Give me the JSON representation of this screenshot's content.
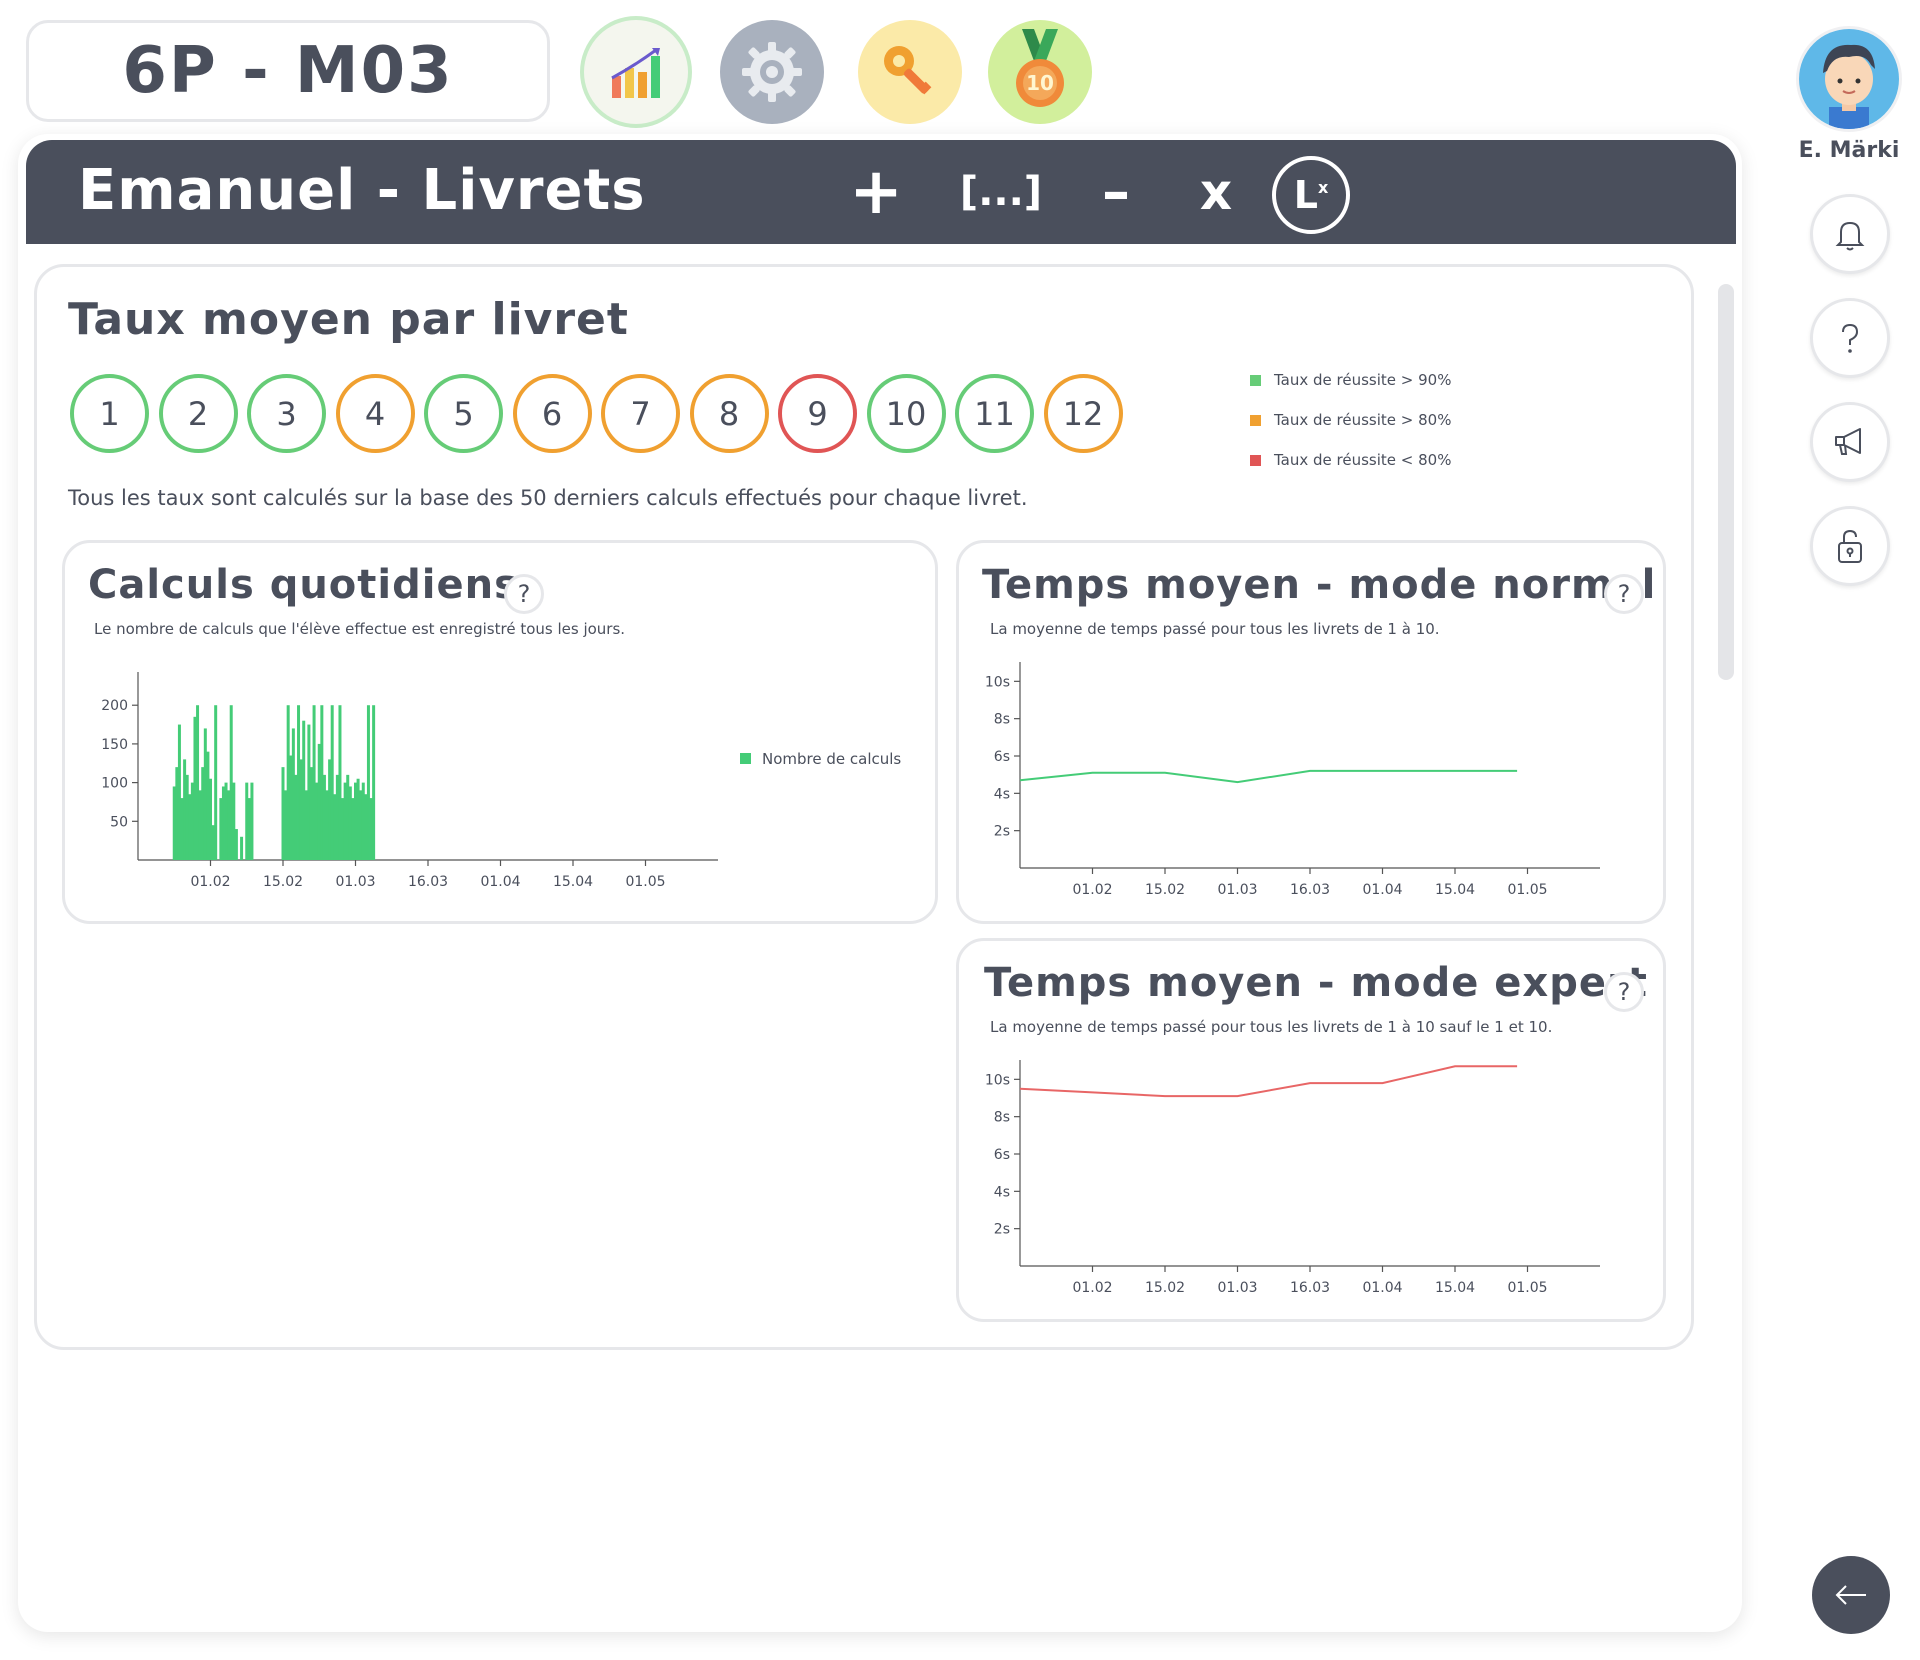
{
  "header": {
    "class_label": "6P - M03",
    "icons": [
      "stats-icon",
      "gear-icon",
      "key-icon",
      "medal-icon"
    ],
    "medal_number": "10"
  },
  "user": {
    "name": "E. Märki"
  },
  "sidebar": {
    "icons": [
      "bell-icon",
      "question-icon",
      "megaphone-icon",
      "lock-icon",
      "back-arrow-icon"
    ]
  },
  "window": {
    "title": "Emanuel - Livrets",
    "buttons": {
      "plus": "+",
      "ellipsis": "[...]",
      "minus": "–",
      "times": "x",
      "exponent_base": "L",
      "exponent_power": "x"
    }
  },
  "summary": {
    "title": "Taux moyen par livret",
    "booklets": [
      {
        "label": "1",
        "status": "green"
      },
      {
        "label": "2",
        "status": "green"
      },
      {
        "label": "3",
        "status": "green"
      },
      {
        "label": "4",
        "status": "orange"
      },
      {
        "label": "5",
        "status": "green"
      },
      {
        "label": "6",
        "status": "orange"
      },
      {
        "label": "7",
        "status": "orange"
      },
      {
        "label": "8",
        "status": "orange"
      },
      {
        "label": "9",
        "status": "red"
      },
      {
        "label": "10",
        "status": "green"
      },
      {
        "label": "11",
        "status": "green"
      },
      {
        "label": "12",
        "status": "orange"
      }
    ],
    "legend": [
      {
        "label": "Taux de réussite > 90%",
        "color": "#66cc77"
      },
      {
        "label": "Taux de réussite > 80%",
        "color": "#f0a030"
      },
      {
        "label": "Taux de réussite < 80%",
        "color": "#e05555"
      }
    ],
    "note": "Tous les taux sont calculés sur la base des 50 derniers calculs effectués pour chaque livret.",
    "colors": {
      "green": "#66cc77",
      "orange": "#f0a030",
      "red": "#e05555"
    }
  },
  "cards": {
    "daily": {
      "title": "Calculs quotidiens",
      "help": "?",
      "subtitle": "Le nombre de calculs que l'élève effectue est enregistré tous les jours."
    },
    "normal": {
      "title": "Temps moyen - mode normal",
      "help": "?",
      "subtitle": "La moyenne de temps passé pour tous les livrets de 1 à 10."
    },
    "expert": {
      "title": "Temps moyen - mode expert",
      "help": "?",
      "subtitle": "La moyenne de temps passé pour tous les livrets de 1 à 10 sauf le 1 et 10."
    }
  },
  "chart_data": [
    {
      "type": "bar",
      "title": "",
      "series_name": "Nombre de calculs",
      "color": "#44cc77",
      "x_ticks": [
        "01.02",
        "15.02",
        "01.03",
        "16.03",
        "01.04",
        "15.04",
        "01.05"
      ],
      "y_ticks": [
        50,
        100,
        150,
        200
      ],
      "ylim": [
        0,
        230
      ],
      "x_day_range": [
        0,
        112
      ],
      "x_tick_days": [
        14,
        28,
        42,
        56,
        70,
        84,
        98
      ],
      "bars": [
        {
          "day": 7,
          "value": 95
        },
        {
          "day": 7.5,
          "value": 120
        },
        {
          "day": 8,
          "value": 175
        },
        {
          "day": 8.5,
          "value": 80
        },
        {
          "day": 9,
          "value": 130
        },
        {
          "day": 9.5,
          "value": 110
        },
        {
          "day": 10,
          "value": 85
        },
        {
          "day": 10.5,
          "value": 100
        },
        {
          "day": 11,
          "value": 185
        },
        {
          "day": 11.5,
          "value": 200
        },
        {
          "day": 12,
          "value": 90
        },
        {
          "day": 12.5,
          "value": 120
        },
        {
          "day": 13,
          "value": 170
        },
        {
          "day": 13.5,
          "value": 140
        },
        {
          "day": 14,
          "value": 105
        },
        {
          "day": 14.5,
          "value": 45
        },
        {
          "day": 15,
          "value": 200
        },
        {
          "day": 16,
          "value": 80
        },
        {
          "day": 16.5,
          "value": 95
        },
        {
          "day": 17,
          "value": 100
        },
        {
          "day": 17.5,
          "value": 90
        },
        {
          "day": 18,
          "value": 200
        },
        {
          "day": 18.5,
          "value": 100
        },
        {
          "day": 19,
          "value": 40
        },
        {
          "day": 20,
          "value": 30
        },
        {
          "day": 21,
          "value": 100
        },
        {
          "day": 21.5,
          "value": 80
        },
        {
          "day": 22,
          "value": 100
        },
        {
          "day": 28,
          "value": 120
        },
        {
          "day": 28.5,
          "value": 90
        },
        {
          "day": 29,
          "value": 200
        },
        {
          "day": 29.5,
          "value": 135
        },
        {
          "day": 30,
          "value": 170
        },
        {
          "day": 30.5,
          "value": 110
        },
        {
          "day": 31,
          "value": 200
        },
        {
          "day": 31.5,
          "value": 130
        },
        {
          "day": 32,
          "value": 180
        },
        {
          "day": 32.5,
          "value": 90
        },
        {
          "day": 33,
          "value": 175
        },
        {
          "day": 33.5,
          "value": 120
        },
        {
          "day": 34,
          "value": 200
        },
        {
          "day": 34.5,
          "value": 100
        },
        {
          "day": 35,
          "value": 150
        },
        {
          "day": 35.5,
          "value": 200
        },
        {
          "day": 36,
          "value": 110
        },
        {
          "day": 36.5,
          "value": 90
        },
        {
          "day": 37,
          "value": 130
        },
        {
          "day": 37.5,
          "value": 200
        },
        {
          "day": 38,
          "value": 85
        },
        {
          "day": 38.5,
          "value": 110
        },
        {
          "day": 39,
          "value": 200
        },
        {
          "day": 39.5,
          "value": 80
        },
        {
          "day": 40,
          "value": 100
        },
        {
          "day": 40.5,
          "value": 110
        },
        {
          "day": 41,
          "value": 95
        },
        {
          "day": 41.5,
          "value": 80
        },
        {
          "day": 42,
          "value": 100
        },
        {
          "day": 42.5,
          "value": 105
        },
        {
          "day": 43,
          "value": 90
        },
        {
          "day": 43.5,
          "value": 100
        },
        {
          "day": 44,
          "value": 85
        },
        {
          "day": 44.5,
          "value": 200
        },
        {
          "day": 45,
          "value": 80
        },
        {
          "day": 45.5,
          "value": 200
        }
      ]
    },
    {
      "type": "line",
      "title": "",
      "color": "#44cc77",
      "x_ticks": [
        "01.02",
        "15.02",
        "01.03",
        "16.03",
        "01.04",
        "15.04",
        "01.05"
      ],
      "y_ticks": [
        "2s",
        "4s",
        "6s",
        "8s",
        "10s"
      ],
      "y_tick_values": [
        2,
        4,
        6,
        8,
        10
      ],
      "ylim": [
        0,
        10.5
      ],
      "x_day_range": [
        0,
        112
      ],
      "x_tick_days": [
        14,
        28,
        42,
        56,
        70,
        84,
        98
      ],
      "points": [
        {
          "day": 0,
          "value": 4.7
        },
        {
          "day": 14,
          "value": 5.1
        },
        {
          "day": 28,
          "value": 5.1
        },
        {
          "day": 42,
          "value": 4.6
        },
        {
          "day": 56,
          "value": 5.2
        },
        {
          "day": 70,
          "value": 5.2
        },
        {
          "day": 84,
          "value": 5.2
        },
        {
          "day": 96,
          "value": 5.2
        }
      ]
    },
    {
      "type": "line",
      "title": "",
      "color": "#e86666",
      "x_ticks": [
        "01.02",
        "15.02",
        "01.03",
        "16.03",
        "01.04",
        "15.04",
        "01.05"
      ],
      "y_ticks": [
        "2s",
        "4s",
        "6s",
        "8s",
        "10s"
      ],
      "y_tick_values": [
        2,
        4,
        6,
        8,
        10
      ],
      "ylim": [
        0,
        10.5
      ],
      "x_day_range": [
        0,
        112
      ],
      "x_tick_days": [
        14,
        28,
        42,
        56,
        70,
        84,
        98
      ],
      "points": [
        {
          "day": 0,
          "value": 9.5
        },
        {
          "day": 14,
          "value": 9.3
        },
        {
          "day": 28,
          "value": 9.1
        },
        {
          "day": 42,
          "value": 9.1
        },
        {
          "day": 56,
          "value": 9.8
        },
        {
          "day": 70,
          "value": 9.8
        },
        {
          "day": 84,
          "value": 10.7
        },
        {
          "day": 96,
          "value": 10.7
        }
      ]
    }
  ]
}
